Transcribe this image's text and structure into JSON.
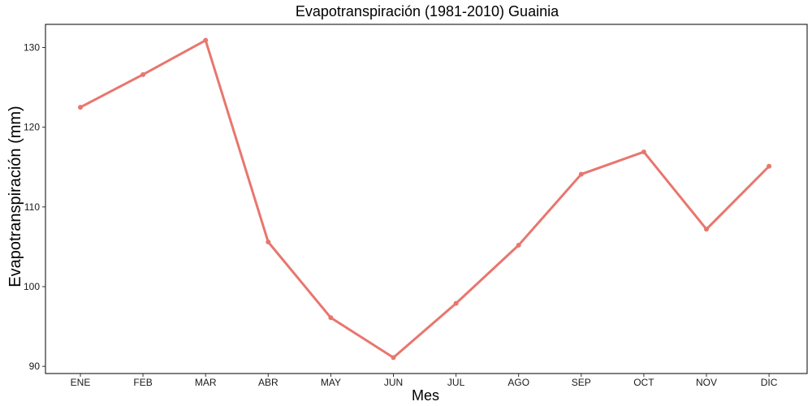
{
  "chart_data": {
    "type": "line",
    "title": "Evapotranspiración (1981-2010)  Guainia",
    "xlabel": "Mes",
    "ylabel": "Evapotranspiración (mm)",
    "categories": [
      "ENE",
      "FEB",
      "MAR",
      "ABR",
      "MAY",
      "JUN",
      "JUL",
      "AGO",
      "SEP",
      "OCT",
      "NOV",
      "DIC"
    ],
    "series": [
      {
        "values": [
          122.5,
          126.6,
          130.9,
          105.6,
          96.1,
          91.1,
          97.9,
          105.2,
          114.1,
          116.9,
          107.2,
          115.1
        ]
      }
    ],
    "yticks": [
      90,
      100,
      110,
      120,
      130
    ],
    "ylim": [
      89.1,
      132.9
    ],
    "grid": false,
    "legend": "none",
    "color": "#E8766E"
  }
}
